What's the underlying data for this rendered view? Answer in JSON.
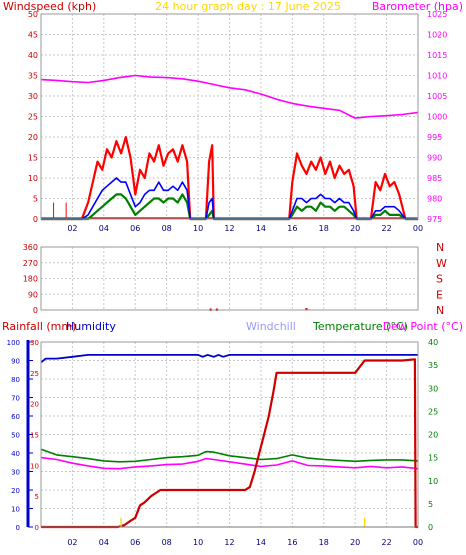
{
  "colors": {
    "windspeed": "#ff0000",
    "wind_avg": "#0000ff",
    "wind_gust_low": "#008000",
    "barometer": "#ff00ff",
    "title": "#ffd700",
    "direction": "#cc0000",
    "rainfall": "#cc0000",
    "humidity": "#0000cc",
    "windchill": "#9999ff",
    "temperature": "#008000",
    "dewpoint": "#ff00ff",
    "grid": "#c8c8c8",
    "axis_text": "#cc0000",
    "zero_line": "#cc0000"
  },
  "chart_data": [
    {
      "type": "line",
      "title": "24 hour graph day : 17 June 2025",
      "ylabel": "Windspeed (kph)",
      "y2label": "Barometer (hpa)",
      "x_ticks": [
        "02",
        "04",
        "06",
        "08",
        "10",
        "12",
        "14",
        "16",
        "18",
        "20",
        "22",
        "00"
      ],
      "xlim": [
        0,
        24
      ],
      "ylim": [
        0,
        50
      ],
      "y_ticks": [
        0,
        5,
        10,
        15,
        20,
        25,
        30,
        35,
        40,
        45,
        50
      ],
      "y2lim": [
        975,
        1025
      ],
      "y2_ticks": [
        975,
        980,
        985,
        990,
        995,
        1000,
        1005,
        1010,
        1015,
        1020,
        1025
      ],
      "grid": true,
      "series": [
        {
          "name": "Barometer (hpa)",
          "axis": "right",
          "x": [
            0,
            1,
            2,
            3,
            4,
            5,
            6,
            7,
            8,
            9,
            10,
            11,
            12,
            13,
            14,
            15,
            16,
            17,
            18,
            19,
            20,
            20.5,
            21,
            22,
            23,
            24
          ],
          "y": [
            1009,
            1008.8,
            1008.5,
            1008.3,
            1008.8,
            1009.5,
            1010,
            1009.6,
            1009.5,
            1009.2,
            1008.6,
            1007.8,
            1007,
            1006.5,
            1005.5,
            1004.2,
            1003.2,
            1002.5,
            1002,
            1001.5,
            999.6,
            999.8,
            1000,
            1000.2,
            1000.5,
            1001
          ]
        },
        {
          "name": "Gust",
          "axis": "left",
          "x": [
            0,
            2.6,
            3.0,
            3.3,
            3.6,
            3.9,
            4.2,
            4.5,
            4.8,
            5.1,
            5.4,
            5.7,
            6.0,
            6.3,
            6.6,
            6.9,
            7.2,
            7.5,
            7.8,
            8.1,
            8.4,
            8.7,
            9.0,
            9.3,
            9.5,
            10.5,
            10.7,
            10.9,
            11.0,
            15.8,
            16.0,
            16.3,
            16.6,
            16.9,
            17.2,
            17.5,
            17.8,
            18.1,
            18.4,
            18.7,
            19.0,
            19.3,
            19.6,
            19.9,
            20.1,
            21.0,
            21.3,
            21.6,
            21.9,
            22.2,
            22.5,
            22.8,
            23.2,
            24
          ],
          "y": [
            0,
            0,
            4,
            9,
            14,
            12,
            17,
            15,
            19,
            16,
            20,
            15,
            6,
            12,
            10,
            16,
            14,
            18,
            13,
            16,
            17,
            14,
            18,
            14,
            0,
            0,
            14,
            18,
            0,
            0,
            9,
            16,
            13,
            11,
            14,
            12,
            15,
            11,
            14,
            10,
            13,
            11,
            12,
            8,
            0,
            0,
            9,
            7,
            11,
            8,
            9,
            6,
            0,
            0
          ]
        },
        {
          "name": "Average",
          "axis": "left",
          "x": [
            0,
            2.6,
            3.0,
            3.3,
            3.6,
            3.9,
            4.2,
            4.5,
            4.8,
            5.1,
            5.4,
            5.7,
            6.0,
            6.3,
            6.6,
            6.9,
            7.2,
            7.5,
            7.8,
            8.1,
            8.4,
            8.7,
            9.0,
            9.3,
            9.5,
            10.5,
            10.7,
            10.9,
            11.0,
            15.8,
            16.0,
            16.3,
            16.6,
            16.9,
            17.2,
            17.5,
            17.8,
            18.1,
            18.4,
            18.7,
            19.0,
            19.3,
            19.6,
            19.9,
            20.1,
            21.0,
            21.3,
            21.6,
            21.9,
            22.2,
            22.5,
            22.8,
            23.2,
            24
          ],
          "y": [
            0,
            0,
            1,
            3,
            5,
            7,
            8,
            9,
            10,
            9,
            9,
            6,
            3,
            4,
            6,
            7,
            7,
            9,
            7,
            7,
            8,
            7,
            9,
            7,
            0,
            0,
            4,
            5,
            0,
            0,
            2,
            5,
            5,
            4,
            5,
            5,
            6,
            5,
            5,
            4,
            5,
            4,
            4,
            2,
            0,
            0,
            2,
            2,
            3,
            3,
            3,
            2,
            0,
            0
          ]
        },
        {
          "name": "Lull",
          "axis": "left",
          "x": [
            0,
            2.6,
            3.0,
            3.3,
            3.6,
            3.9,
            4.2,
            4.5,
            4.8,
            5.1,
            5.4,
            5.7,
            6.0,
            6.3,
            6.6,
            6.9,
            7.2,
            7.5,
            7.8,
            8.1,
            8.4,
            8.7,
            9.0,
            9.3,
            9.5,
            10.5,
            10.7,
            10.9,
            11.0,
            15.8,
            16.0,
            16.3,
            16.6,
            16.9,
            17.2,
            17.5,
            17.8,
            18.1,
            18.4,
            18.7,
            19.0,
            19.3,
            19.6,
            19.9,
            20.1,
            21.0,
            21.3,
            21.6,
            21.9,
            22.2,
            22.5,
            22.8,
            23.2,
            24
          ],
          "y": [
            0,
            0,
            0,
            1,
            2,
            3,
            4,
            5,
            6,
            6,
            5,
            3,
            1,
            2,
            3,
            4,
            5,
            5,
            4,
            5,
            5,
            4,
            6,
            4,
            0,
            0,
            1,
            2,
            0,
            0,
            1,
            3,
            2,
            3,
            3,
            2,
            4,
            3,
            3,
            2,
            3,
            3,
            2,
            1,
            0,
            0,
            1,
            1,
            2,
            1,
            1,
            1,
            0,
            0
          ]
        }
      ]
    },
    {
      "type": "scatter",
      "title": "",
      "y_ticks": [
        0,
        90,
        180,
        270,
        360
      ],
      "ylim": [
        0,
        360
      ],
      "direction_labels": [
        "N",
        "W",
        "S",
        "E",
        "N"
      ],
      "x_ticks": [],
      "grid": true,
      "series": [
        {
          "x": [
            10.8,
            11.2,
            16.9
          ],
          "y": [
            2,
            2,
            4
          ]
        }
      ]
    },
    {
      "type": "line",
      "title": "",
      "legend": [
        "Rainfall (mm)",
        "Humidity",
        "Windchill",
        "Temperature (°C)",
        "Dew Point (°C)"
      ],
      "x_ticks": [
        "02",
        "04",
        "06",
        "08",
        "10",
        "12",
        "14",
        "16",
        "18",
        "20",
        "22",
        "00"
      ],
      "xlim": [
        0,
        24
      ],
      "humidity_ticks": [
        0,
        10,
        20,
        30,
        40,
        50,
        60,
        70,
        80,
        90,
        100
      ],
      "humidity_lim": [
        0,
        100
      ],
      "rain_ticks": [
        0,
        5,
        10,
        15,
        20,
        25,
        30
      ],
      "rain_lim": [
        0,
        30
      ],
      "temp_ticks": [
        0,
        5,
        10,
        15,
        20,
        25,
        30,
        35,
        40
      ],
      "temp_lim": [
        0,
        40
      ],
      "grid": true,
      "series": [
        {
          "name": "Humidity",
          "axis": "humidity",
          "x": [
            0,
            0.3,
            1,
            2,
            3,
            4,
            5,
            6,
            7,
            8,
            9,
            10,
            10.3,
            10.6,
            11,
            11.3,
            11.6,
            12,
            13,
            14,
            15,
            16,
            17,
            18,
            19,
            20,
            21,
            22,
            23,
            24
          ],
          "y": [
            89,
            91,
            91,
            92,
            93,
            93,
            93,
            93,
            93,
            93,
            93,
            93,
            92,
            93,
            92,
            93,
            92,
            93,
            93,
            93,
            93,
            93,
            93,
            93,
            93,
            93,
            93,
            93,
            93,
            93
          ]
        },
        {
          "name": "Rainfall (mm)",
          "axis": "rain",
          "x": [
            0,
            4.9,
            5.3,
            5.7,
            6.0,
            6.3,
            6.6,
            7.0,
            7.6,
            8.0,
            9,
            10,
            11,
            12,
            13,
            13.3,
            13.6,
            13.9,
            14.2,
            14.5,
            14.8,
            15.0,
            16,
            17,
            18,
            19,
            20,
            20.3,
            20.6,
            21,
            22,
            23,
            23.8,
            23.85,
            24
          ],
          "y": [
            0,
            0,
            0.3,
            1,
            1.5,
            3.5,
            4,
            5,
            6,
            6,
            6,
            6,
            6,
            6,
            6,
            6.5,
            9,
            12,
            15,
            18,
            22,
            25,
            25,
            25,
            25,
            25,
            25,
            26,
            27,
            27,
            27,
            27,
            27.2,
            0,
            0
          ]
        },
        {
          "name": "Temperature (°C)",
          "axis": "temp",
          "x": [
            0,
            1,
            2,
            3,
            4,
            5,
            6,
            7,
            8,
            9,
            10,
            10.5,
            11,
            12,
            13,
            14,
            15,
            16,
            17,
            18,
            19,
            20,
            21,
            22,
            23,
            24
          ],
          "y": [
            16.8,
            15.6,
            15.2,
            14.8,
            14.3,
            14.1,
            14.2,
            14.6,
            15.0,
            15.2,
            15.5,
            16.3,
            16.2,
            15.4,
            15.0,
            14.6,
            14.8,
            15.6,
            14.9,
            14.6,
            14.4,
            14.2,
            14.4,
            14.5,
            14.5,
            14.3
          ]
        },
        {
          "name": "Dew Point (°C)",
          "axis": "temp",
          "x": [
            0,
            1,
            2,
            3,
            4,
            5,
            6,
            7,
            8,
            9,
            10,
            10.5,
            11,
            12,
            13,
            14,
            15,
            16,
            17,
            18,
            19,
            20,
            21,
            22,
            23,
            24
          ],
          "y": [
            15.0,
            14.6,
            13.8,
            13.2,
            12.7,
            12.6,
            13.0,
            13.2,
            13.5,
            13.6,
            14.2,
            14.8,
            14.6,
            14.1,
            13.6,
            13.1,
            13.4,
            14.3,
            13.3,
            13.2,
            13.0,
            12.8,
            13.1,
            12.8,
            13.0,
            12.6
          ]
        },
        {
          "name": "Markers",
          "axis": "rain",
          "x": [
            5.1,
            20.6
          ],
          "y": [
            1.5,
            1.5
          ]
        }
      ]
    }
  ]
}
